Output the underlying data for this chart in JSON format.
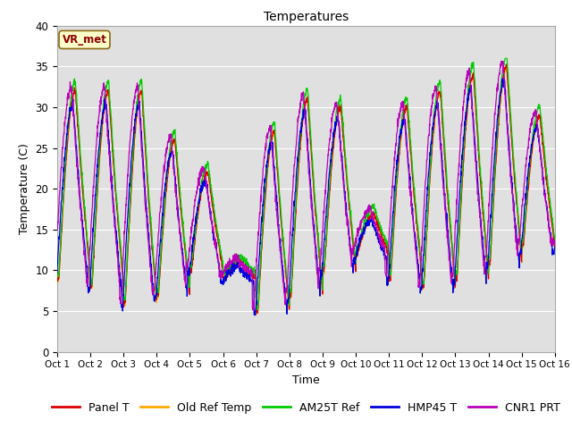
{
  "title": "Temperatures",
  "xlabel": "Time",
  "ylabel": "Temperature (C)",
  "ylim": [
    0,
    40
  ],
  "xlim": [
    0,
    15
  ],
  "xtick_labels": [
    "Oct 1",
    "Oct 2",
    "Oct 3",
    "Oct 4",
    "Oct 5",
    "Oct 6",
    "Oct 7",
    "Oct 8",
    "Oct 9",
    "Oct 10",
    "Oct 11",
    "Oct 12",
    "Oct 13",
    "Oct 14",
    "Oct 15",
    "Oct 16"
  ],
  "ytick_labels": [
    "0",
    "5",
    "10",
    "15",
    "20",
    "25",
    "30",
    "35",
    "40"
  ],
  "ytick_vals": [
    0,
    5,
    10,
    15,
    20,
    25,
    30,
    35,
    40
  ],
  "series_colors": {
    "Panel T": "#dd0000",
    "Old Ref Temp": "#ffaa00",
    "AM25T Ref": "#00cc00",
    "HMP45 T": "#0000dd",
    "CNR1 PRT": "#bb00bb"
  },
  "annotation_text": "VR_met",
  "bg_color": "#e0e0e0",
  "fig_bg": "#ffffff",
  "title_fontsize": 10,
  "axis_fontsize": 9,
  "legend_fontsize": 9
}
